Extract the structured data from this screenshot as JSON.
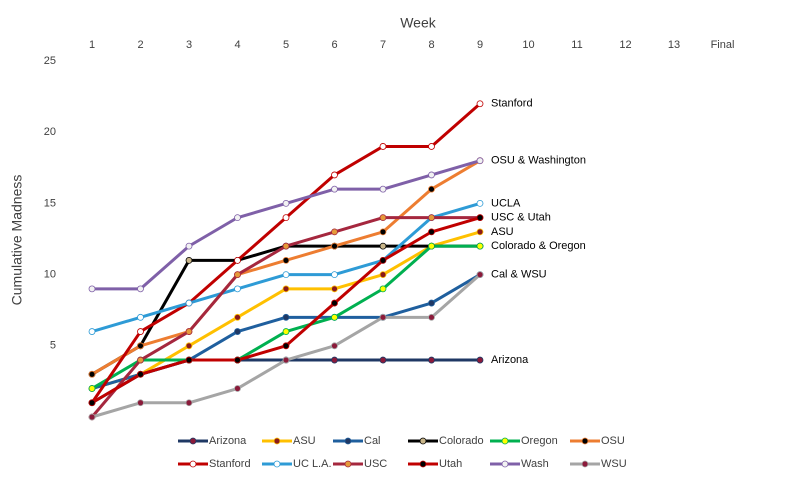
{
  "chart_data": {
    "type": "line",
    "x_label": "Week",
    "y_label": "Cumulative Madness",
    "categories": [
      "1",
      "2",
      "3",
      "4",
      "5",
      "6",
      "7",
      "8",
      "9",
      "10",
      "11",
      "12",
      "13",
      "Final"
    ],
    "ylim": [
      0,
      25
    ],
    "yticks": [
      5,
      10,
      15,
      20,
      25
    ],
    "grid": false,
    "series": [
      {
        "name": "Arizona",
        "color": "#1f3864",
        "marker_color": "#8b1a3a",
        "values": [
          1,
          3,
          4,
          4,
          4,
          4,
          4,
          4,
          4,
          null,
          null,
          null,
          null,
          null
        ]
      },
      {
        "name": "ASU",
        "color": "#ffc000",
        "marker_color": "#8b1a1a",
        "values": [
          2,
          3,
          5,
          7,
          9,
          9,
          10,
          12,
          13,
          null,
          null,
          null,
          null,
          null
        ]
      },
      {
        "name": "Cal",
        "color": "#1f5f9e",
        "marker_color": "#1f3864",
        "values": [
          2,
          3,
          4,
          6,
          7,
          7,
          7,
          8,
          10,
          null,
          null,
          null,
          null,
          null
        ]
      },
      {
        "name": "Colorado",
        "color": "#000000",
        "marker_color": "#c9b68a",
        "values": [
          3,
          5,
          11,
          11,
          12,
          12,
          12,
          12,
          12,
          null,
          null,
          null,
          null,
          null
        ]
      },
      {
        "name": "Oregon",
        "color": "#00b050",
        "marker_color": "#ffff00",
        "values": [
          2,
          4,
          4,
          4,
          6,
          7,
          9,
          12,
          12,
          null,
          null,
          null,
          null,
          null
        ]
      },
      {
        "name": "OSU",
        "color": "#ed7d31",
        "marker_color": "#000000",
        "values": [
          3,
          5,
          6,
          10,
          11,
          12,
          13,
          16,
          18,
          null,
          null,
          null,
          null,
          null
        ]
      },
      {
        "name": "Stanford",
        "color": "#c00000",
        "marker_color": "#ffffff",
        "values": [
          1,
          6,
          8,
          11,
          14,
          17,
          19,
          19,
          22,
          null,
          null,
          null,
          null,
          null
        ]
      },
      {
        "name": "UC L.A.",
        "color": "#2e9bd6",
        "marker_color": "#ffffff",
        "values": [
          6,
          7,
          8,
          9,
          10,
          10,
          11,
          14,
          15,
          null,
          null,
          null,
          null,
          null
        ]
      },
      {
        "name": "USC",
        "color": "#a5273e",
        "marker_color": "#e59a3a",
        "values": [
          0,
          4,
          6,
          10,
          12,
          13,
          14,
          14,
          14,
          null,
          null,
          null,
          null,
          null
        ]
      },
      {
        "name": "Utah",
        "color": "#c00000",
        "marker_color": "#000000",
        "values": [
          1,
          3,
          4,
          4,
          5,
          8,
          11,
          13,
          14,
          null,
          null,
          null,
          null,
          null
        ]
      },
      {
        "name": "Wash",
        "color": "#7f60a8",
        "marker_color": "#f2f2f2",
        "values": [
          9,
          9,
          12,
          14,
          15,
          16,
          16,
          17,
          18,
          null,
          null,
          null,
          null,
          null
        ]
      },
      {
        "name": "WSU",
        "color": "#a5a5a5",
        "marker_color": "#8b1a3a",
        "values": [
          0,
          1,
          1,
          2,
          4,
          5,
          7,
          7,
          10,
          null,
          null,
          null,
          null,
          null
        ]
      }
    ],
    "annotations": [
      {
        "text": "Stanford",
        "y": 22
      },
      {
        "text": "OSU & Washington",
        "y": 18
      },
      {
        "text": "UCLA",
        "y": 15
      },
      {
        "text": "USC & Utah",
        "y": 14
      },
      {
        "text": "ASU",
        "y": 13
      },
      {
        "text": "Colorado & Oregon",
        "y": 12
      },
      {
        "text": "Cal & WSU",
        "y": 10
      },
      {
        "text": "Arizona",
        "y": 4
      }
    ]
  }
}
